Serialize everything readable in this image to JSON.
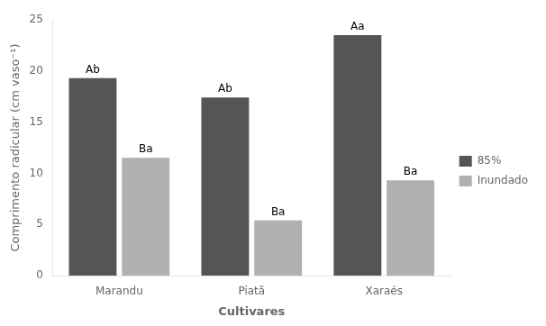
{
  "chart_data": {
    "type": "bar",
    "categories": [
      "Marandu",
      "Piatã",
      "Xaraés"
    ],
    "series": [
      {
        "name": "85%",
        "color": "#555555",
        "values": [
          19.3,
          17.4,
          23.5
        ],
        "annotations": [
          "Ab",
          "Ab",
          "Aa"
        ]
      },
      {
        "name": "Inundado",
        "color": "#b0b0b0",
        "values": [
          11.5,
          5.4,
          9.3
        ],
        "annotations": [
          "Ba",
          "Ba",
          "Ba"
        ]
      }
    ],
    "xlabel": "Cultivares",
    "ylabel": "Comprimento radicular (cm vaso⁻¹)",
    "ylim": [
      0,
      25
    ],
    "yticks": [
      0,
      5,
      10,
      15,
      20,
      25
    ],
    "grid": false,
    "legend": "right"
  }
}
